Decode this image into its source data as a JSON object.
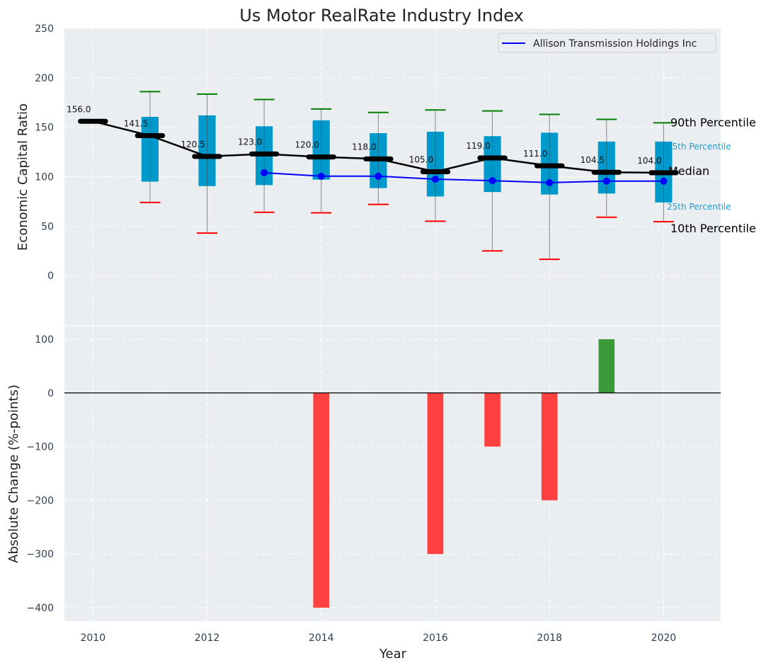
{
  "chart_data": [
    {
      "type": "box",
      "title": "Us Motor RealRate Industry Index",
      "ylabel": "Economic Capital Ratio",
      "xlabel": "",
      "xlim": [
        2009.5,
        2021
      ],
      "ylim": [
        -50,
        250
      ],
      "yticks": [
        0,
        50,
        100,
        150,
        200,
        250
      ],
      "grid": true,
      "legend": {
        "position": "top-right",
        "entries": [
          "Allison Transmission Holdings Inc"
        ]
      },
      "years": [
        2010,
        2011,
        2012,
        2013,
        2014,
        2015,
        2016,
        2017,
        2018,
        2019,
        2020
      ],
      "median": [
        156.0,
        141.5,
        120.5,
        123.0,
        120.0,
        118.0,
        105.0,
        119.0,
        111.0,
        104.5,
        104.0
      ],
      "median_labels": [
        "156.0",
        "141.5",
        "120.5",
        "123.0",
        "120.0",
        "118.0",
        "105.0",
        "119.0",
        "111.0",
        "104.5",
        "104.0"
      ],
      "p90": [
        null,
        186,
        183.5,
        178,
        168.5,
        165,
        167.5,
        166.5,
        163,
        158,
        154.5
      ],
      "p75": [
        null,
        160.5,
        162,
        151,
        157,
        144,
        145.5,
        141,
        144.5,
        135.5,
        135.5
      ],
      "p25": [
        null,
        95,
        90.5,
        91.5,
        97,
        88.5,
        80,
        84.5,
        82,
        83,
        74
      ],
      "p10": [
        null,
        74,
        43,
        64,
        63.5,
        72,
        55,
        25,
        16.5,
        59,
        54.5
      ],
      "company": {
        "name": "Allison Transmission Holdings Inc",
        "years": [
          2013,
          2014,
          2015,
          2016,
          2017,
          2018,
          2019,
          2020
        ],
        "values": [
          104,
          100.5,
          100.5,
          97.5,
          96,
          94,
          95.5,
          95.5
        ]
      },
      "annotations": {
        "p90": "90th Percentile",
        "p75": "75th Percentile",
        "median": "Median",
        "p25": "25th Percentile",
        "p10": "10th Percentile"
      },
      "colors": {
        "box": "#0099cc",
        "median": "#000000",
        "p90": "#008000",
        "p10": "#ff0000",
        "company": "#0000ff",
        "annot_small": "#1a9fd0"
      }
    },
    {
      "type": "bar",
      "xlabel": "Year",
      "ylabel": "Absolute Change (%-points)",
      "xlim": [
        2009.5,
        2021
      ],
      "ylim": [
        -425,
        125
      ],
      "yticks": [
        -400,
        -300,
        -200,
        -100,
        0,
        100
      ],
      "xticks": [
        2010,
        2012,
        2014,
        2016,
        2018,
        2020
      ],
      "grid": true,
      "categories": [
        2014,
        2016,
        2017,
        2018,
        2019
      ],
      "values": [
        -400,
        -300,
        -100,
        -200,
        100
      ],
      "colors": {
        "positive": "#3a9a3a",
        "negative": "#ff4040"
      }
    }
  ]
}
